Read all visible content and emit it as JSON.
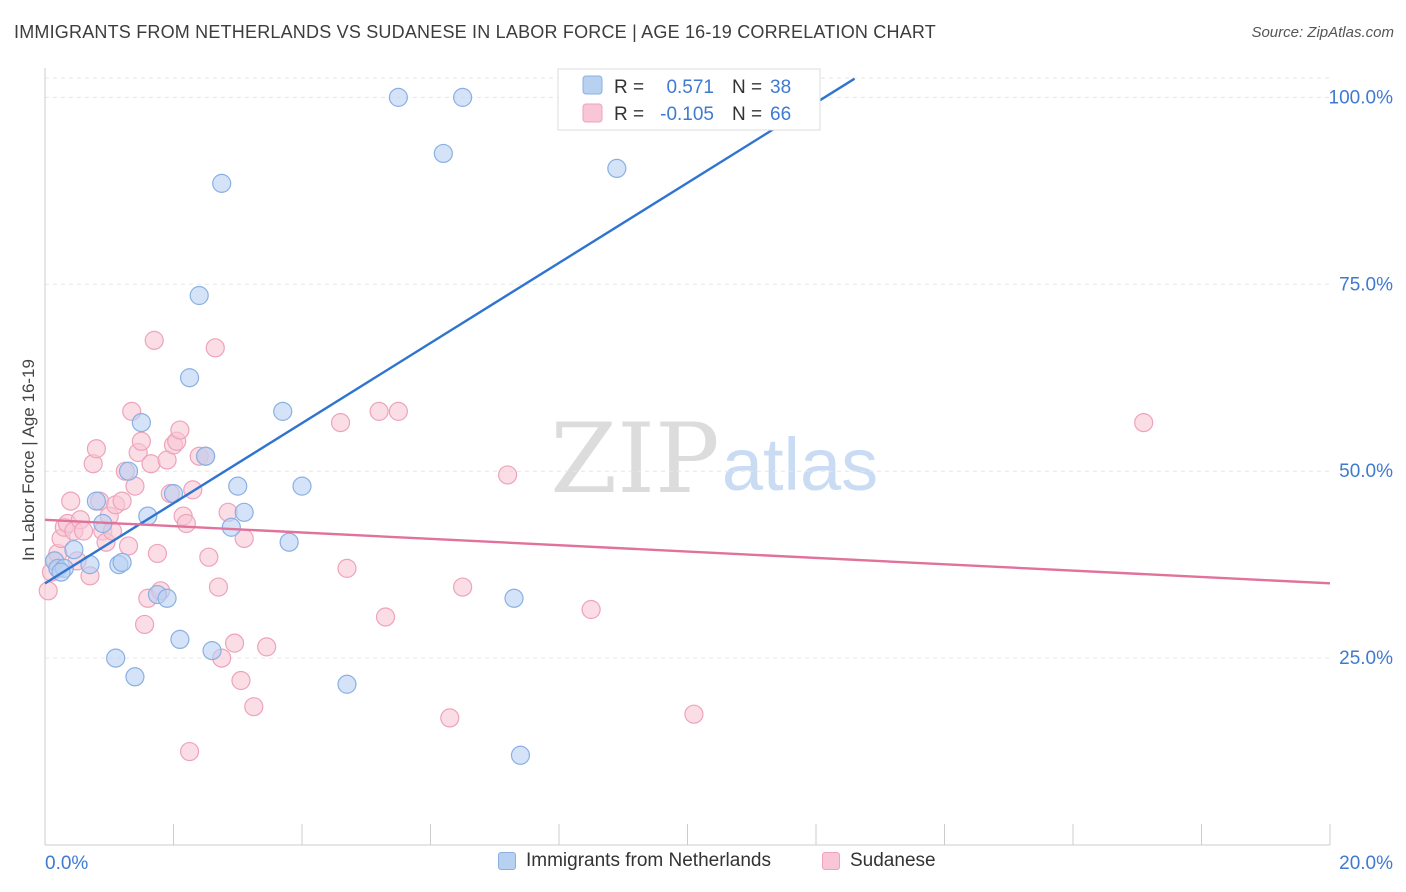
{
  "title": "IMMIGRANTS FROM NETHERLANDS VS SUDANESE IN LABOR FORCE | AGE 16-19 CORRELATION CHART",
  "source": "Source: ZipAtlas.com",
  "watermark": {
    "zip": "ZIP",
    "atlas": "atlas"
  },
  "colors": {
    "blue_fill": "#b8d1f1",
    "blue_stroke": "#8ab0e3",
    "blue_line": "#2f74d0",
    "pink_fill": "#f8c6d6",
    "pink_stroke": "#eea3bb",
    "pink_line": "#e0729c",
    "axis_label": "#3f7ad0",
    "grid": "#e6e6e6"
  },
  "stats_legend": {
    "rows": [
      {
        "r_label": "R =",
        "r_value": "0.571",
        "n_label": "N =",
        "n_value": "38",
        "series": "blue"
      },
      {
        "r_label": "R =",
        "r_value": "-0.105",
        "n_label": "N =",
        "n_value": "66",
        "series": "pink"
      }
    ]
  },
  "chart_data": {
    "type": "scatter",
    "title": "IMMIGRANTS FROM NETHERLANDS VS SUDANESE IN LABOR FORCE | AGE 16-19 CORRELATION CHART",
    "xlabel": "",
    "ylabel": "In Labor Force | Age 16-19",
    "xlim": [
      0,
      20
    ],
    "ylim": [
      0,
      105
    ],
    "x_tick_labels": [
      {
        "value": 0,
        "label": "0.0%"
      },
      {
        "value": 20,
        "label": "20.0%"
      }
    ],
    "y_tick_labels": [
      {
        "value": 25,
        "label": "25.0%"
      },
      {
        "value": 50,
        "label": "50.0%"
      },
      {
        "value": 75,
        "label": "75.0%"
      },
      {
        "value": 100,
        "label": "100.0%"
      }
    ],
    "grid": true,
    "legend_position": "bottom",
    "series": [
      {
        "name": "Immigrants from Netherlands",
        "color": "blue",
        "trend": {
          "x": [
            0,
            12.6
          ],
          "y": [
            35,
            102.5
          ]
        },
        "points": [
          [
            0.15,
            38
          ],
          [
            0.2,
            37
          ],
          [
            0.3,
            37
          ],
          [
            0.45,
            39.5
          ],
          [
            0.7,
            37.5
          ],
          [
            0.8,
            46
          ],
          [
            0.9,
            43
          ],
          [
            1.1,
            25
          ],
          [
            1.15,
            37.5
          ],
          [
            1.3,
            50
          ],
          [
            1.4,
            22.5
          ],
          [
            1.5,
            56.5
          ],
          [
            1.6,
            44
          ],
          [
            1.75,
            33.5
          ],
          [
            1.9,
            33
          ],
          [
            2.0,
            47
          ],
          [
            2.1,
            27.5
          ],
          [
            2.25,
            62.5
          ],
          [
            2.4,
            73.5
          ],
          [
            2.5,
            52
          ],
          [
            2.6,
            26
          ],
          [
            2.75,
            88.5
          ],
          [
            2.9,
            42.5
          ],
          [
            3.0,
            48
          ],
          [
            3.1,
            44.5
          ],
          [
            3.7,
            58
          ],
          [
            3.8,
            40.5
          ],
          [
            4.0,
            48
          ],
          [
            4.7,
            21.5
          ],
          [
            5.5,
            100
          ],
          [
            6.2,
            92.5
          ],
          [
            6.5,
            100
          ],
          [
            7.3,
            33
          ],
          [
            7.4,
            12
          ],
          [
            8.9,
            90.5
          ],
          [
            10.8,
            100
          ],
          [
            0.25,
            36.5
          ],
          [
            1.2,
            37.8
          ]
        ]
      },
      {
        "name": "Sudanese",
        "color": "pink",
        "trend": {
          "x": [
            0,
            20
          ],
          "y": [
            43.5,
            35
          ]
        },
        "points": [
          [
            0.05,
            34
          ],
          [
            0.1,
            36.5
          ],
          [
            0.15,
            38
          ],
          [
            0.2,
            39
          ],
          [
            0.25,
            41
          ],
          [
            0.3,
            42.5
          ],
          [
            0.35,
            43
          ],
          [
            0.4,
            46
          ],
          [
            0.45,
            42
          ],
          [
            0.5,
            38
          ],
          [
            0.55,
            43.5
          ],
          [
            0.6,
            42
          ],
          [
            0.7,
            36
          ],
          [
            0.75,
            51
          ],
          [
            0.8,
            53
          ],
          [
            0.85,
            46
          ],
          [
            0.9,
            42
          ],
          [
            0.95,
            40.5
          ],
          [
            1.0,
            44
          ],
          [
            1.05,
            42
          ],
          [
            1.1,
            45.5
          ],
          [
            1.2,
            46
          ],
          [
            1.25,
            50
          ],
          [
            1.3,
            40
          ],
          [
            1.35,
            58
          ],
          [
            1.4,
            48
          ],
          [
            1.45,
            52.5
          ],
          [
            1.5,
            54
          ],
          [
            1.55,
            29.5
          ],
          [
            1.6,
            33
          ],
          [
            1.65,
            51
          ],
          [
            1.7,
            67.5
          ],
          [
            1.75,
            39
          ],
          [
            1.8,
            34
          ],
          [
            1.9,
            51.5
          ],
          [
            1.95,
            47
          ],
          [
            2.0,
            53.5
          ],
          [
            2.05,
            54
          ],
          [
            2.1,
            55.5
          ],
          [
            2.15,
            44
          ],
          [
            2.2,
            43
          ],
          [
            2.3,
            47.5
          ],
          [
            2.25,
            12.5
          ],
          [
            2.4,
            52
          ],
          [
            2.5,
            52
          ],
          [
            2.55,
            38.5
          ],
          [
            2.65,
            66.5
          ],
          [
            2.7,
            34.5
          ],
          [
            2.75,
            25
          ],
          [
            2.85,
            44.5
          ],
          [
            2.95,
            27
          ],
          [
            3.05,
            22
          ],
          [
            3.1,
            41
          ],
          [
            3.25,
            18.5
          ],
          [
            3.45,
            26.5
          ],
          [
            4.6,
            56.5
          ],
          [
            4.7,
            37
          ],
          [
            5.2,
            58
          ],
          [
            5.3,
            30.5
          ],
          [
            5.5,
            58
          ],
          [
            6.3,
            17
          ],
          [
            6.5,
            34.5
          ],
          [
            7.2,
            49.5
          ],
          [
            8.5,
            31.5
          ],
          [
            10.1,
            17.5
          ],
          [
            17.1,
            56.5
          ]
        ]
      }
    ]
  }
}
